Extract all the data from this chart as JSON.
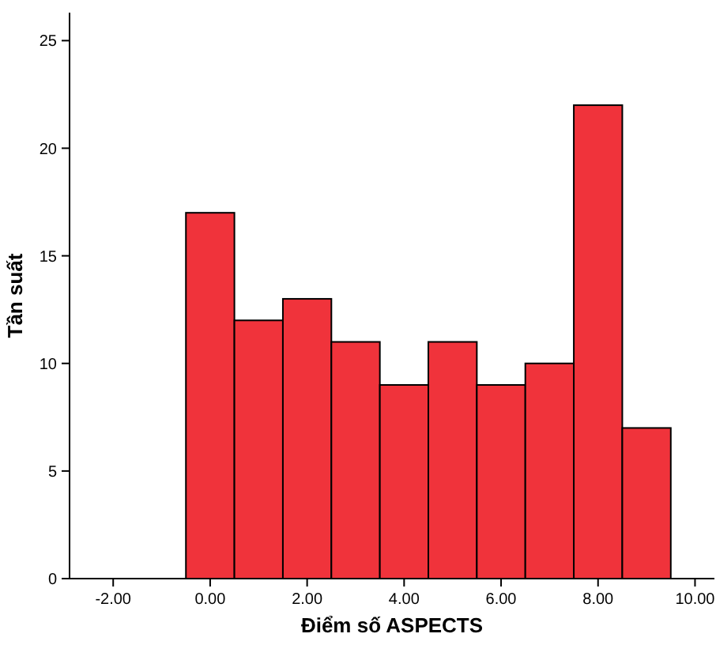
{
  "chart_data": {
    "type": "histogram",
    "xlabel": "Điểm số ASPECTS",
    "ylabel": "Tần suất",
    "bins": [
      -0.5,
      0.5,
      1.5,
      2.5,
      3.5,
      4.5,
      5.5,
      6.5,
      7.5,
      8.5,
      9.5
    ],
    "values": [
      17,
      12,
      13,
      11,
      9,
      11,
      9,
      10,
      22,
      7
    ],
    "color": "#f0333b",
    "xlim": [
      -2.9,
      10.4
    ],
    "xticks": [
      {
        "value": -2,
        "label": "-2.00"
      },
      {
        "value": 0,
        "label": "0.00"
      },
      {
        "value": 2,
        "label": "2.00"
      },
      {
        "value": 4,
        "label": "4.00"
      },
      {
        "value": 6,
        "label": "6.00"
      },
      {
        "value": 8,
        "label": "8.00"
      },
      {
        "value": 10,
        "label": "10.00"
      }
    ],
    "ylim": [
      0,
      26.3
    ],
    "yticks": [
      0,
      5,
      10,
      15,
      20,
      25
    ]
  }
}
